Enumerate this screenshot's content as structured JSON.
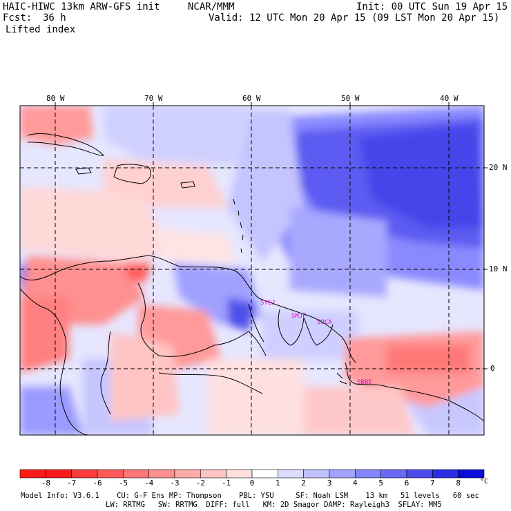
{
  "header": {
    "model": "HAIC-HIWC 13km ARW-GFS init",
    "org": "NCAR/MMM",
    "init": "Init: 00 UTC Sun 19 Apr 15",
    "fcst_label": "Fcst:",
    "fcst_value": "36 h",
    "valid": "Valid: 12 UTC Mon 20 Apr 15 (09 LST Mon 20 Apr 15)",
    "field": "Lifted index"
  },
  "map": {
    "lon_labels": [
      "80 W",
      "70 W",
      "60 W",
      "50 W",
      "40 W"
    ],
    "lat_labels": [
      "20 N",
      "10 N",
      "0"
    ],
    "stations": [
      "SYEJ",
      "SMJP",
      "SOCA",
      "SBBE"
    ]
  },
  "colorbar": {
    "unit": "°C",
    "labels": [
      "-8",
      "-7",
      "-6",
      "-5",
      "-4",
      "-3",
      "-2",
      "-1",
      "0",
      "1",
      "2",
      "3",
      "4",
      "5",
      "6",
      "7",
      "8"
    ],
    "colors": [
      "#ff1a1a",
      "#ff3b3b",
      "#ff5a5a",
      "#ff7676",
      "#ff9090",
      "#ffaaaa",
      "#ffc4c4",
      "#ffdede",
      "#ffffff",
      "#dcdcff",
      "#c0c0ff",
      "#a2a2ff",
      "#8484ff",
      "#6868f4",
      "#4c4cec",
      "#2c2ce4",
      "#0c0cd8"
    ]
  },
  "footer": {
    "line1": "Model Info: V3.6.1    CU: G-F Ens MP: Thompson    PBL: YSU     SF: Noah LSM    13 km   51 levels   60 sec",
    "line2": "LW: RRTMG   SW: RRTMG  DIFF: full   KM: 2D Smagor DAMP: Rayleigh3  SFLAY: MM5"
  }
}
